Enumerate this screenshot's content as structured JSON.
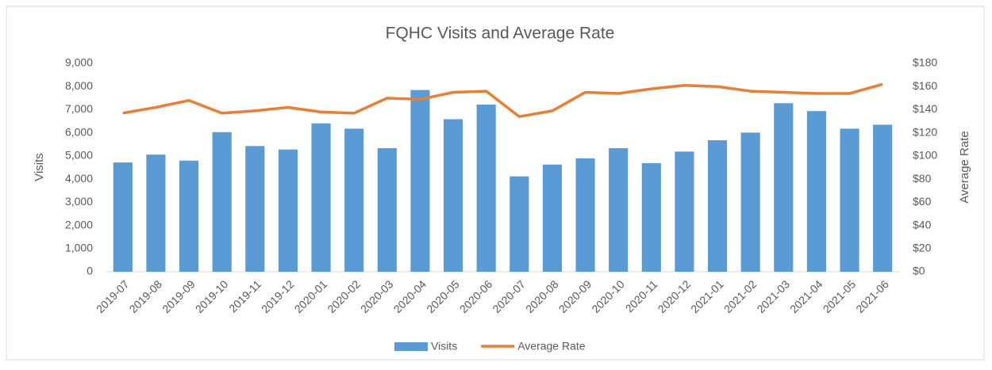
{
  "chart_data": {
    "type": "bar",
    "title": "FQHC Visits and Average Rate",
    "ylabel": "Visits",
    "y2label": "Average Rate",
    "categories": [
      "2019-07",
      "2019-08",
      "2019-09",
      "2019-10",
      "2019-11",
      "2019-12",
      "2020-01",
      "2020-02",
      "2020-03",
      "2020-04",
      "2020-05",
      "2020-06",
      "2020-07",
      "2020-08",
      "2020-09",
      "2020-10",
      "2020-11",
      "2020-12",
      "2021-01",
      "2021-02",
      "2021-03",
      "2021-04",
      "2021-05",
      "2021-06"
    ],
    "series": [
      {
        "name": "Visits",
        "type": "bar",
        "color": "#5b9bd5",
        "values": [
          4720,
          5060,
          4800,
          6030,
          5430,
          5280,
          6410,
          6180,
          5340,
          7850,
          6590,
          7220,
          4120,
          4630,
          4900,
          5340,
          4690,
          5190,
          5680,
          6010,
          7280,
          6940,
          6180,
          6350
        ]
      },
      {
        "name": "Average Rate",
        "type": "line",
        "axis": "y2",
        "color": "#ed7d31",
        "values": [
          137,
          142,
          148,
          137,
          139,
          142,
          138,
          137,
          150,
          149,
          155,
          156,
          134,
          139,
          155,
          154,
          158,
          161,
          160,
          156,
          155,
          154,
          154,
          162
        ]
      }
    ],
    "ylim": [
      0,
      9000
    ],
    "yticks": [
      0,
      {
        "value": 1000,
        "label": "1,000"
      },
      {
        "value": 2000,
        "label": "2,000"
      },
      {
        "value": 3000,
        "label": "3,000"
      },
      {
        "value": 4000,
        "label": "4,000"
      },
      {
        "value": 5000,
        "label": "5,000"
      },
      {
        "value": 6000,
        "label": "6,000"
      },
      {
        "value": 7000,
        "label": "7,000"
      },
      {
        "value": 8000,
        "label": "8,000"
      },
      {
        "value": 9000,
        "label": "9,000"
      }
    ],
    "y2lim": [
      0,
      180
    ],
    "y2ticks": [
      {
        "value": 0,
        "label": "$0"
      },
      {
        "value": 20,
        "label": "$20"
      },
      {
        "value": 40,
        "label": "$40"
      },
      {
        "value": 60,
        "label": "$60"
      },
      {
        "value": 80,
        "label": "$80"
      },
      {
        "value": 100,
        "label": "$100"
      },
      {
        "value": 120,
        "label": "$120"
      },
      {
        "value": 140,
        "label": "$140"
      },
      {
        "value": 160,
        "label": "$160"
      },
      {
        "value": 180,
        "label": "$180"
      }
    ],
    "grid": false,
    "legend": "bottom"
  }
}
